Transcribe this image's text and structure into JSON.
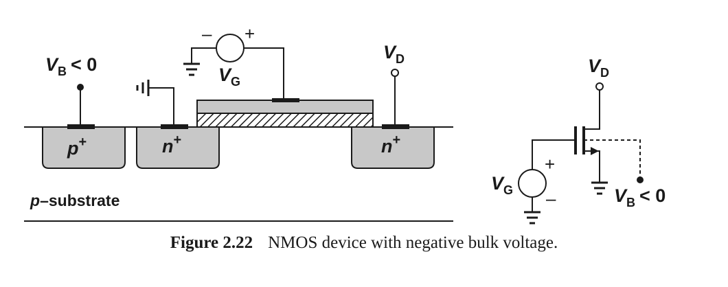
{
  "labels": {
    "vb_var": "V",
    "vb_sub": "B",
    "vb_rel": "< 0",
    "vg_var": "V",
    "vg_sub": "G",
    "vd_var": "V",
    "vd_sub": "D",
    "p_plus_letter": "p",
    "n_plus_letter": "n",
    "plus_sup": "+",
    "substrate_p": "p",
    "substrate_rest": "–substrate",
    "plus_sign": "+",
    "minus_sign": "–"
  },
  "caption": {
    "figure": "Figure 2.22",
    "text": "NMOS device with negative bulk voltage."
  },
  "colors": {
    "well_fill": "#c8c8c8",
    "gate_fill": "#c8c8c8",
    "stroke": "#1a1a1a",
    "background": "#ffffff"
  }
}
